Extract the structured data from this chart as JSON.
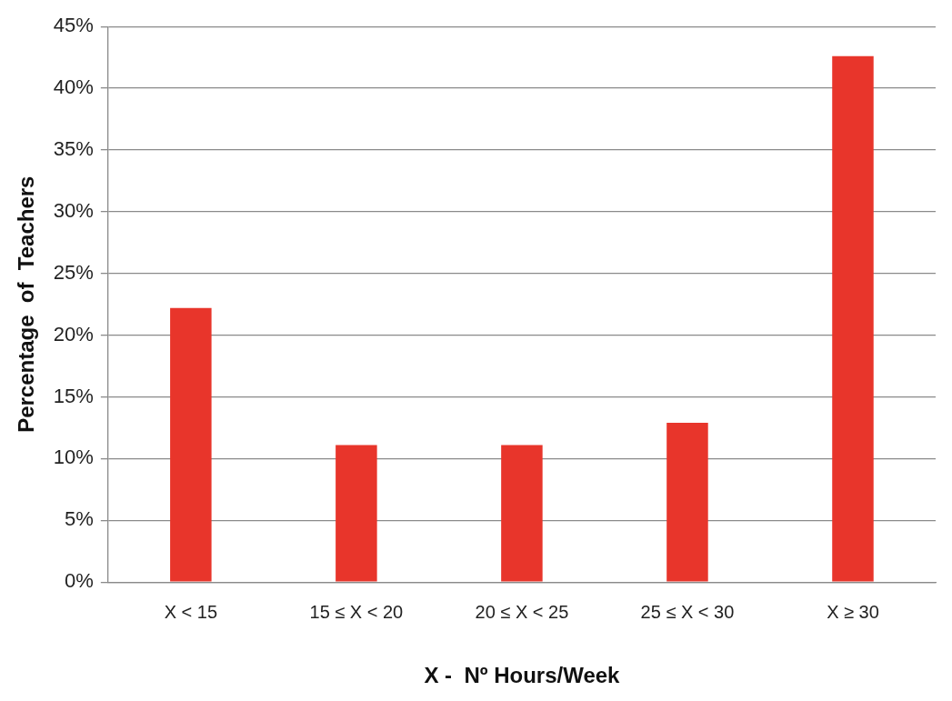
{
  "chart_data": {
    "type": "bar",
    "xlabel": "X -  Nº Hours/Week",
    "ylabel": "Percentage  of  Teachers",
    "categories": [
      "X < 15",
      "15 ≤ X < 20",
      "20 ≤ X < 25",
      "25 ≤ X < 30",
      "X ≥ 30"
    ],
    "values": [
      22.2,
      11.1,
      11.1,
      12.9,
      42.6
    ],
    "color": "#e8352b",
    "ylim": [
      0,
      45
    ],
    "yticks": [
      {
        "value": 0,
        "label": "0%"
      },
      {
        "value": 5,
        "label": "5%"
      },
      {
        "value": 10,
        "label": "10%"
      },
      {
        "value": 15,
        "label": "15%"
      },
      {
        "value": 20,
        "label": "20%"
      },
      {
        "value": 25,
        "label": "25%"
      },
      {
        "value": 30,
        "label": "30%"
      },
      {
        "value": 35,
        "label": "35%"
      },
      {
        "value": 40,
        "label": "40%"
      },
      {
        "value": 45,
        "label": "45%"
      }
    ],
    "grid": "y",
    "legend": false
  }
}
